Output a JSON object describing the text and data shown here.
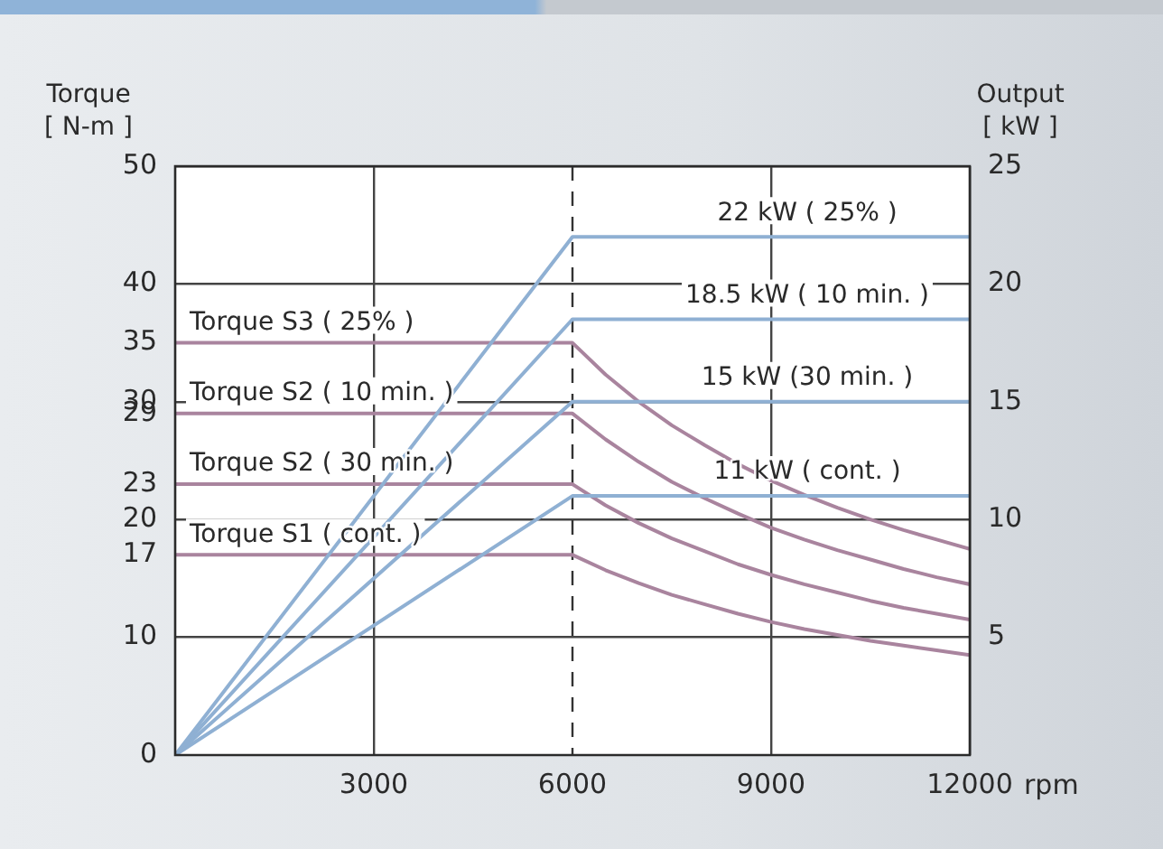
{
  "chart_data": {
    "type": "line",
    "xlabel": "rpm",
    "ylabel": "Torque\n[ N-m ]",
    "y2label": "Output\n[ kW ]",
    "xlim": [
      0,
      12000
    ],
    "xticks": [
      3000,
      6000,
      9000,
      12000
    ],
    "ylim": [
      0,
      50
    ],
    "yticks": [
      0,
      10,
      17,
      20,
      23,
      29,
      30,
      35,
      40,
      50
    ],
    "y2lim": [
      0,
      25
    ],
    "y2ticks": [
      5,
      10,
      15,
      20,
      25
    ],
    "grid": true,
    "ref_lines": [
      {
        "axis": "x",
        "value": 6000,
        "line_style": "dashed",
        "color": "#333333"
      }
    ],
    "series": [
      {
        "name": "22 kW ( 25% )",
        "axis": "y2",
        "color": "#8fb0d3",
        "x": [
          0,
          6000,
          12000
        ],
        "values": [
          0,
          22,
          22
        ]
      },
      {
        "name": "18.5 kW ( 10 min. )",
        "axis": "y2",
        "color": "#8fb0d3",
        "x": [
          0,
          6000,
          12000
        ],
        "values": [
          0,
          18.5,
          18.5
        ]
      },
      {
        "name": "15 kW (30 min. )",
        "axis": "y2",
        "color": "#8fb0d3",
        "x": [
          0,
          6000,
          12000
        ],
        "values": [
          0,
          15,
          15
        ]
      },
      {
        "name": "11 kW ( cont. )",
        "axis": "y2",
        "color": "#8fb0d3",
        "x": [
          0,
          6000,
          12000
        ],
        "values": [
          0,
          11,
          11
        ]
      },
      {
        "name": "Torque S3 ( 25% )",
        "axis": "y",
        "color": "#a9849e",
        "x": [
          0,
          6000,
          6500,
          7000,
          7500,
          8000,
          8500,
          9000,
          9500,
          10000,
          10500,
          11000,
          11500,
          12000
        ],
        "values": [
          35,
          35,
          32.3,
          30,
          28,
          26.3,
          24.7,
          23.3,
          22.1,
          21,
          20,
          19.1,
          18.3,
          17.5
        ]
      },
      {
        "name": "Torque S2 ( 10 min. )",
        "axis": "y",
        "color": "#a9849e",
        "x": [
          0,
          6000,
          6500,
          7000,
          7500,
          8000,
          8500,
          9000,
          9500,
          10000,
          10500,
          11000,
          11500,
          12000
        ],
        "values": [
          29,
          29,
          26.8,
          24.9,
          23.2,
          21.8,
          20.5,
          19.3,
          18.3,
          17.4,
          16.6,
          15.8,
          15.1,
          14.5
        ]
      },
      {
        "name": "Torque S2 ( 30 min. )",
        "axis": "y",
        "color": "#a9849e",
        "x": [
          0,
          6000,
          6500,
          7000,
          7500,
          8000,
          8500,
          9000,
          9500,
          10000,
          10500,
          11000,
          11500,
          12000
        ],
        "values": [
          23,
          23,
          21.2,
          19.7,
          18.4,
          17.3,
          16.2,
          15.3,
          14.5,
          13.8,
          13.1,
          12.5,
          12,
          11.5
        ]
      },
      {
        "name": "Torque S1 ( cont. )",
        "axis": "y",
        "color": "#a9849e",
        "x": [
          0,
          6000,
          6500,
          7000,
          7500,
          8000,
          8500,
          9000,
          9500,
          10000,
          10500,
          11000,
          11500,
          12000
        ],
        "values": [
          17,
          17,
          15.7,
          14.6,
          13.6,
          12.8,
          12,
          11.3,
          10.7,
          10.2,
          9.7,
          9.3,
          8.9,
          8.5
        ]
      }
    ]
  }
}
